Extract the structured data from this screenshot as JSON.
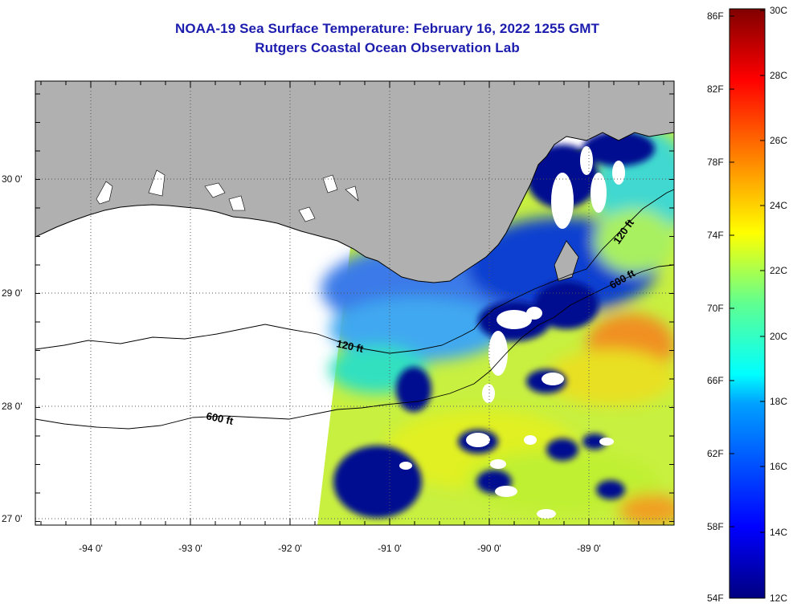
{
  "title": {
    "line1": "NOAA-19 Sea Surface Temperature:  February 16, 2022 1255 GMT",
    "line2": "Rutgers Coastal Ocean Observation Lab"
  },
  "map": {
    "longitude_labels": [
      {
        "lon": -94,
        "label": "-94 0'"
      },
      {
        "lon": -93,
        "label": "-93 0'"
      },
      {
        "lon": -92,
        "label": "-92 0'"
      },
      {
        "lon": -91,
        "label": "-91 0'"
      },
      {
        "lon": -90,
        "label": "-90 0'"
      },
      {
        "lon": -89,
        "label": "-89 0'"
      }
    ],
    "latitude_labels": [
      {
        "lat": 30,
        "label": "30 0'"
      },
      {
        "lat": 29,
        "label": "29 0'"
      },
      {
        "lat": 28,
        "label": "28 0'"
      },
      {
        "lat": 27,
        "label": "27 0'"
      }
    ],
    "isobath_labels": [
      "120 ft",
      "600 ft",
      "120 ft",
      "600 ft"
    ],
    "colors": {
      "land": "#b0b0b0",
      "no_data": "#ffffff",
      "grid": "#555555"
    }
  },
  "colorbar": {
    "fahrenheit_labels": [
      "86F",
      "82F",
      "78F",
      "74F",
      "70F",
      "66F",
      "62F",
      "58F",
      "54F"
    ],
    "celsius_labels": [
      "30C",
      "28C",
      "26C",
      "24C",
      "22C",
      "20C",
      "18C",
      "16C",
      "14C",
      "12C"
    ],
    "range_celsius": [
      12,
      30
    ]
  }
}
